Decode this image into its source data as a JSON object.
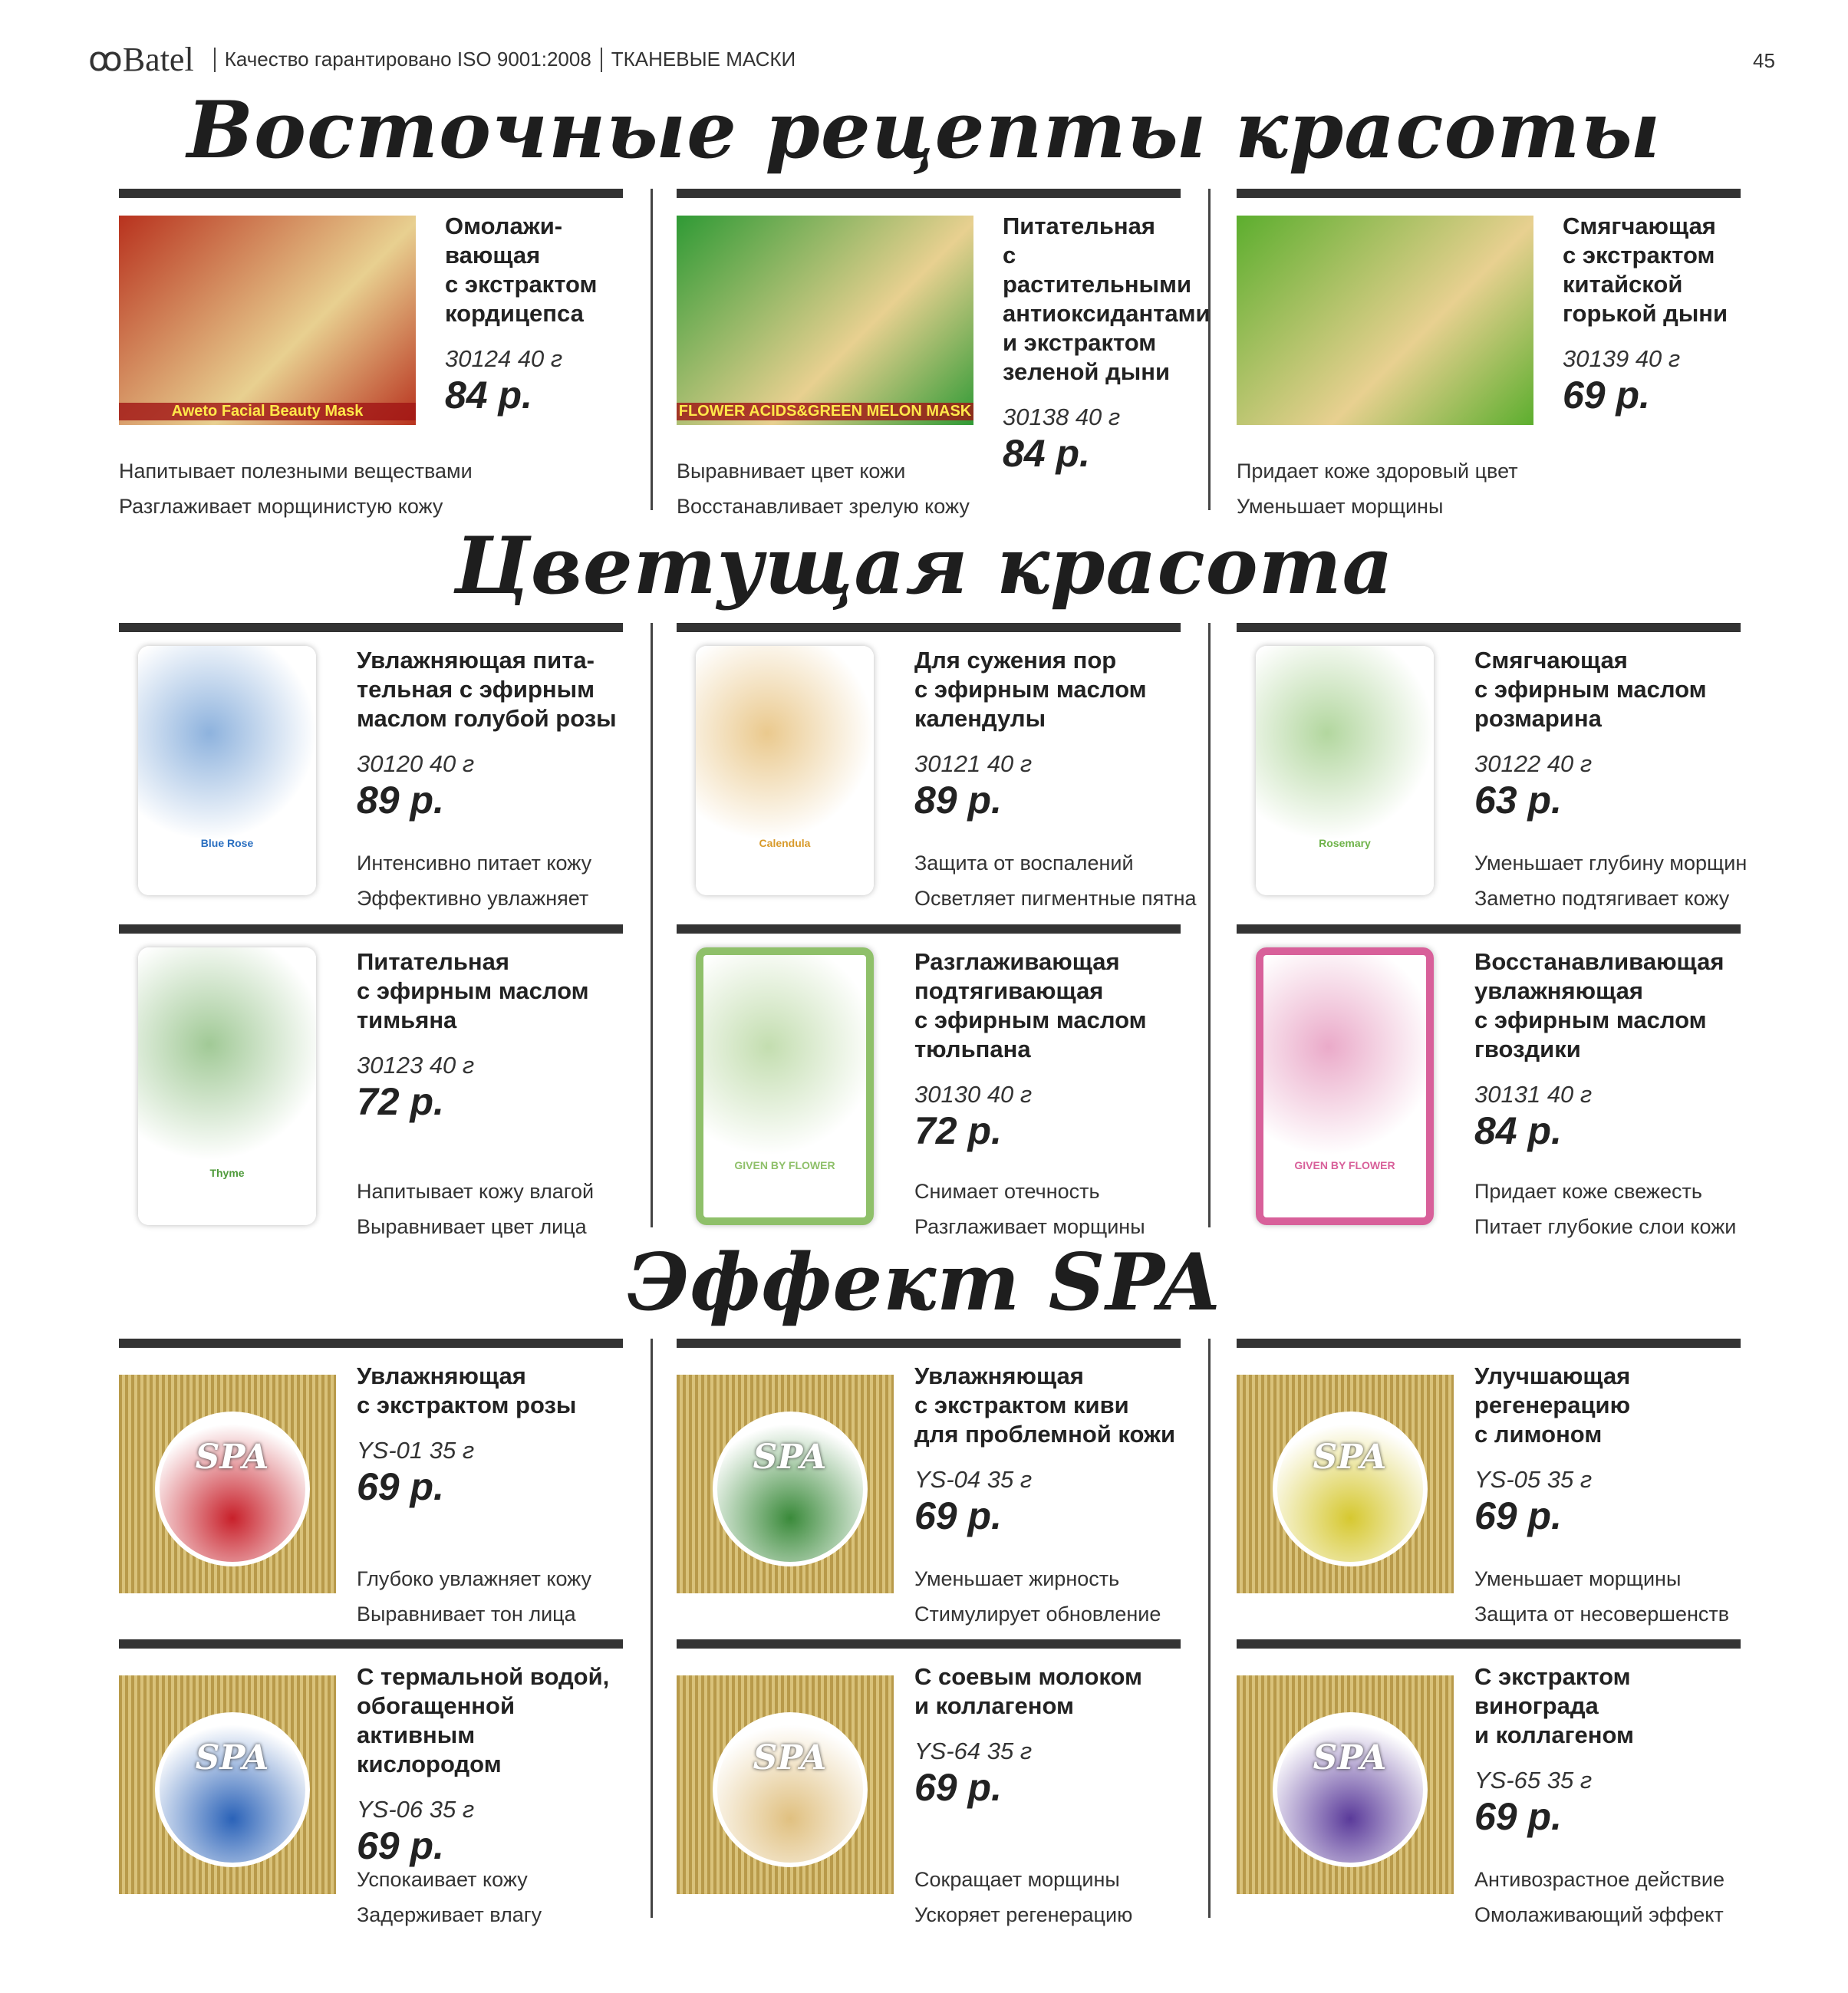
{
  "header": {
    "brand": "Batel",
    "tagline": "Качество гарантировано ISO 9001:2008",
    "category": "ТКАНЕВЫЕ МАСКИ",
    "page": "45"
  },
  "sections": [
    "Восточные рецепты красоты",
    "Цветущая красота",
    "Эффект SPA"
  ],
  "products": [
    {
      "title": "Омолажи-\nвающая\nс экстрактом\nкордицепса",
      "code": "30124  40 г",
      "price": "84 р.",
      "bullets": [
        "Напитывает полезными веществами",
        "Разглаживает морщинистую кожу"
      ],
      "pack": "Aweto Facial Beauty Mask",
      "color": "#b8321e"
    },
    {
      "title": "Питательная\nс растительными\nантиоксидантами\nи экстрактом\nзеленой дыни",
      "code": "30138  40 г",
      "price": "84 р.",
      "bullets": [
        "Выравнивает цвет кожи",
        "Восстанавливает зрелую кожу"
      ],
      "pack": "FLOWER ACIDS&GREEN MELON MASK",
      "color": "#2f9a35"
    },
    {
      "title": "Смягчающая\nс экстрактом\nкитайской\nгорькой дыни",
      "code": "30139  40 г",
      "price": "69 р.",
      "bullets": [
        "Придает коже здоровый цвет",
        "Уменьшает морщины"
      ],
      "pack": "",
      "color": "#5cae2e"
    },
    {
      "title": "Увлажняющая пита-\nтельная с эфирным\nмаслом голубой розы",
      "code": "30120  40 г",
      "price": "89 р.",
      "bullets": [
        "Интенсивно питает кожу",
        "Эффективно увлажняет"
      ],
      "pack": "Blue Rose",
      "color": "#2a6fc0"
    },
    {
      "title": "Для сужения пор\nс эфирным маслом\nкалендулы",
      "code": "30121  40 г",
      "price": "89 р.",
      "bullets": [
        "Защита от воспалений",
        "Осветляет пигментные пятна"
      ],
      "pack": "Calendula",
      "color": "#d89a2a"
    },
    {
      "title": "Смягчающая\nс эфирным маслом\nрозмарина",
      "code": "30122   40 г",
      "price": "63 р.",
      "bullets": [
        "Уменьшает глубину морщин",
        "Заметно подтягивает кожу"
      ],
      "pack": "Rosemary",
      "color": "#6fb34a"
    },
    {
      "title": "Питательная\nс эфирным маслом\nтимьяна",
      "code": "30123  40 г",
      "price": "72 р.",
      "bullets": [
        "Напитывает кожу влагой",
        "Выравнивает цвет лица"
      ],
      "pack": "Thyme",
      "color": "#4e9a3a"
    },
    {
      "title": "Разглаживающая\nподтягивающая\nс эфирным маслом\nтюльпана",
      "code": "30130  40 г",
      "price": "72 р.",
      "bullets": [
        "Снимает отечность",
        "Разглаживает морщины"
      ],
      "pack": "GIVEN BY FLOWER",
      "color": "#8fc06a"
    },
    {
      "title": "Восстанавливающая\nувлажняющая\nс эфирным маслом\nгвоздики",
      "code": "30131  40 г",
      "price": "84 р.",
      "bullets": [
        "Придает коже свежесть",
        "Питает глубокие слои кожи"
      ],
      "pack": "GIVEN BY FLOWER",
      "color": "#d8609a"
    },
    {
      "title": "Увлажняющая\nс экстрактом розы",
      "code": "YS-01  35 г",
      "price": "69 р.",
      "bullets": [
        "Глубоко увлажняет кожу",
        "Выравнивает тон лица"
      ],
      "pack": "SPA",
      "color": "#c8202a"
    },
    {
      "title": "Увлажняющая\nс экстрактом киви\nдля проблемной кожи",
      "code": "YS-04  35 г",
      "price": "69 р.",
      "bullets": [
        "Уменьшает жирность",
        "Стимулирует обновление"
      ],
      "pack": "SPA",
      "color": "#3a8a3a"
    },
    {
      "title": "Улучшающая\nрегенерацию\nс лимоном",
      "code": "YS-05  35 г",
      "price": "69 р.",
      "bullets": [
        "Уменьшает морщины",
        "Защита от несовершенств"
      ],
      "pack": "SPA",
      "color": "#d6c830"
    },
    {
      "title": "С термальной водой,\nобогащенной активным\nкислородом",
      "code": "YS-06  35 г",
      "price": "69 р.",
      "bullets": [
        "Успокаивает кожу",
        "Задерживает влагу"
      ],
      "pack": "SPA",
      "color": "#2a62b8"
    },
    {
      "title": "С соевым молоком\nи коллагеном",
      "code": "YS-64  35 г",
      "price": "69 р.",
      "bullets": [
        "Сокращает морщины",
        "Ускоряет регенерацию"
      ],
      "pack": "SPA",
      "color": "#e0c080"
    },
    {
      "title": "С экстрактом винограда\nи коллагеном",
      "code": "YS-65  35 г",
      "price": "69 р.",
      "bullets": [
        "Антивозрастное действие",
        "Омолаживающий эффект"
      ],
      "pack": "SPA",
      "color": "#5a3a9a"
    }
  ]
}
